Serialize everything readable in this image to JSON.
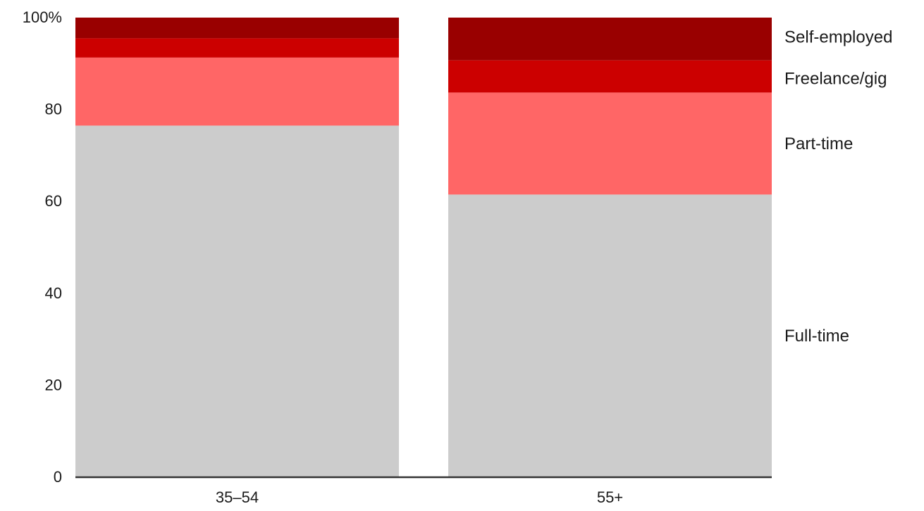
{
  "chart_data": {
    "type": "bar",
    "stacked": true,
    "categories": [
      "35–54",
      "55+"
    ],
    "y_tick_labels": [
      "0",
      "20",
      "40",
      "60",
      "80",
      "100%"
    ],
    "ylim": [
      0,
      100
    ],
    "series": [
      {
        "name": "Full-time",
        "values": [
          76.5,
          61.5
        ],
        "color": "#cccccc"
      },
      {
        "name": "Part-time",
        "values": [
          14.8,
          22.2
        ],
        "color": "#ff6666"
      },
      {
        "name": "Freelance/gig",
        "values": [
          4.2,
          7.0
        ],
        "color": "#cc0000"
      },
      {
        "name": "Self-employed",
        "values": [
          4.5,
          9.3
        ],
        "color": "#990000"
      }
    ],
    "legend_placement": "right, labels aligned to last bar's segments",
    "grid": false
  }
}
